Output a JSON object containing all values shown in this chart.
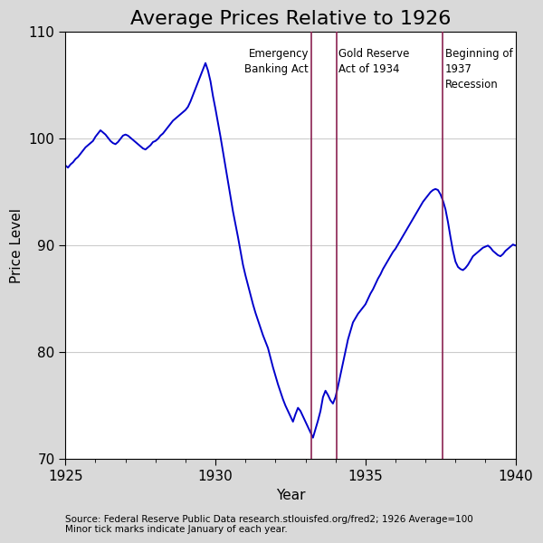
{
  "title": "Average Prices Relative to 1926",
  "xlabel": "Year",
  "ylabel": "Price Level",
  "xlim": [
    1925,
    1940
  ],
  "ylim": [
    70,
    110
  ],
  "yticks": [
    70,
    80,
    90,
    100,
    110
  ],
  "xticks": [
    1925,
    1930,
    1935,
    1940
  ],
  "line_color": "#0000CC",
  "vline_color": "#8B2252",
  "background_color": "#D9D9D9",
  "plot_bg_color": "#FFFFFF",
  "vline1_x": 1933.19,
  "vline2_x": 1934.03,
  "vline3_x": 1937.58,
  "vline1_label": "Emergency\nBanking Act",
  "vline2_label": "Gold Reserve\nAct of 1934",
  "vline3_label": "Beginning of\n1937\nRecession",
  "source_text": "Source: Federal Reserve Public Data research.stlouisfed.org/fred2; 1926 Average=100\nMinor tick marks indicate January of each year.",
  "title_fontsize": 16,
  "label_fontsize": 11,
  "tick_fontsize": 11,
  "annotation_fontsize": 8.5,
  "source_fontsize": 7.5,
  "raw_data": [
    97.5,
    97.3,
    97.6,
    97.8,
    98.1,
    98.3,
    98.6,
    98.9,
    99.2,
    99.4,
    99.6,
    99.8,
    100.2,
    100.5,
    100.8,
    100.6,
    100.4,
    100.1,
    99.8,
    99.6,
    99.5,
    99.7,
    100.0,
    100.3,
    100.4,
    100.3,
    100.1,
    99.9,
    99.7,
    99.5,
    99.3,
    99.1,
    99.0,
    99.2,
    99.4,
    99.7,
    99.8,
    100.0,
    100.3,
    100.5,
    100.8,
    101.1,
    101.4,
    101.7,
    101.9,
    102.1,
    102.3,
    102.5,
    102.7,
    103.0,
    103.5,
    104.1,
    104.7,
    105.3,
    105.9,
    106.5,
    107.1,
    106.4,
    105.4,
    104.0,
    102.8,
    101.5,
    100.2,
    98.8,
    97.4,
    96.0,
    94.6,
    93.2,
    92.0,
    90.8,
    89.5,
    88.2,
    87.2,
    86.3,
    85.4,
    84.5,
    83.7,
    83.0,
    82.3,
    81.6,
    81.0,
    80.4,
    79.5,
    78.6,
    77.8,
    77.0,
    76.3,
    75.6,
    75.0,
    74.5,
    74.0,
    73.5,
    74.2,
    74.8,
    74.5,
    74.0,
    73.5,
    73.0,
    72.5,
    72.0,
    72.8,
    73.6,
    74.5,
    75.8,
    76.4,
    76.0,
    75.5,
    75.2,
    75.8,
    76.8,
    77.9,
    79.0,
    80.1,
    81.2,
    82.0,
    82.8,
    83.2,
    83.6,
    83.9,
    84.2,
    84.5,
    85.0,
    85.5,
    85.9,
    86.4,
    86.9,
    87.3,
    87.8,
    88.2,
    88.6,
    89.0,
    89.4,
    89.7,
    90.1,
    90.5,
    90.9,
    91.3,
    91.7,
    92.1,
    92.5,
    92.9,
    93.3,
    93.7,
    94.1,
    94.4,
    94.7,
    95.0,
    95.2,
    95.3,
    95.2,
    94.8,
    94.2,
    93.4,
    92.2,
    90.8,
    89.5,
    88.5,
    88.0,
    87.8,
    87.7,
    87.9,
    88.2,
    88.6,
    89.0,
    89.2,
    89.4,
    89.6,
    89.8,
    89.9,
    90.0,
    89.8,
    89.5,
    89.3,
    89.1,
    89.0,
    89.2,
    89.5,
    89.7,
    89.9,
    90.1,
    90.0,
    90.1,
    90.2,
    90.1,
    90.0,
    89.8,
    89.6,
    89.5,
    89.4,
    89.6,
    89.8,
    90.0
  ]
}
